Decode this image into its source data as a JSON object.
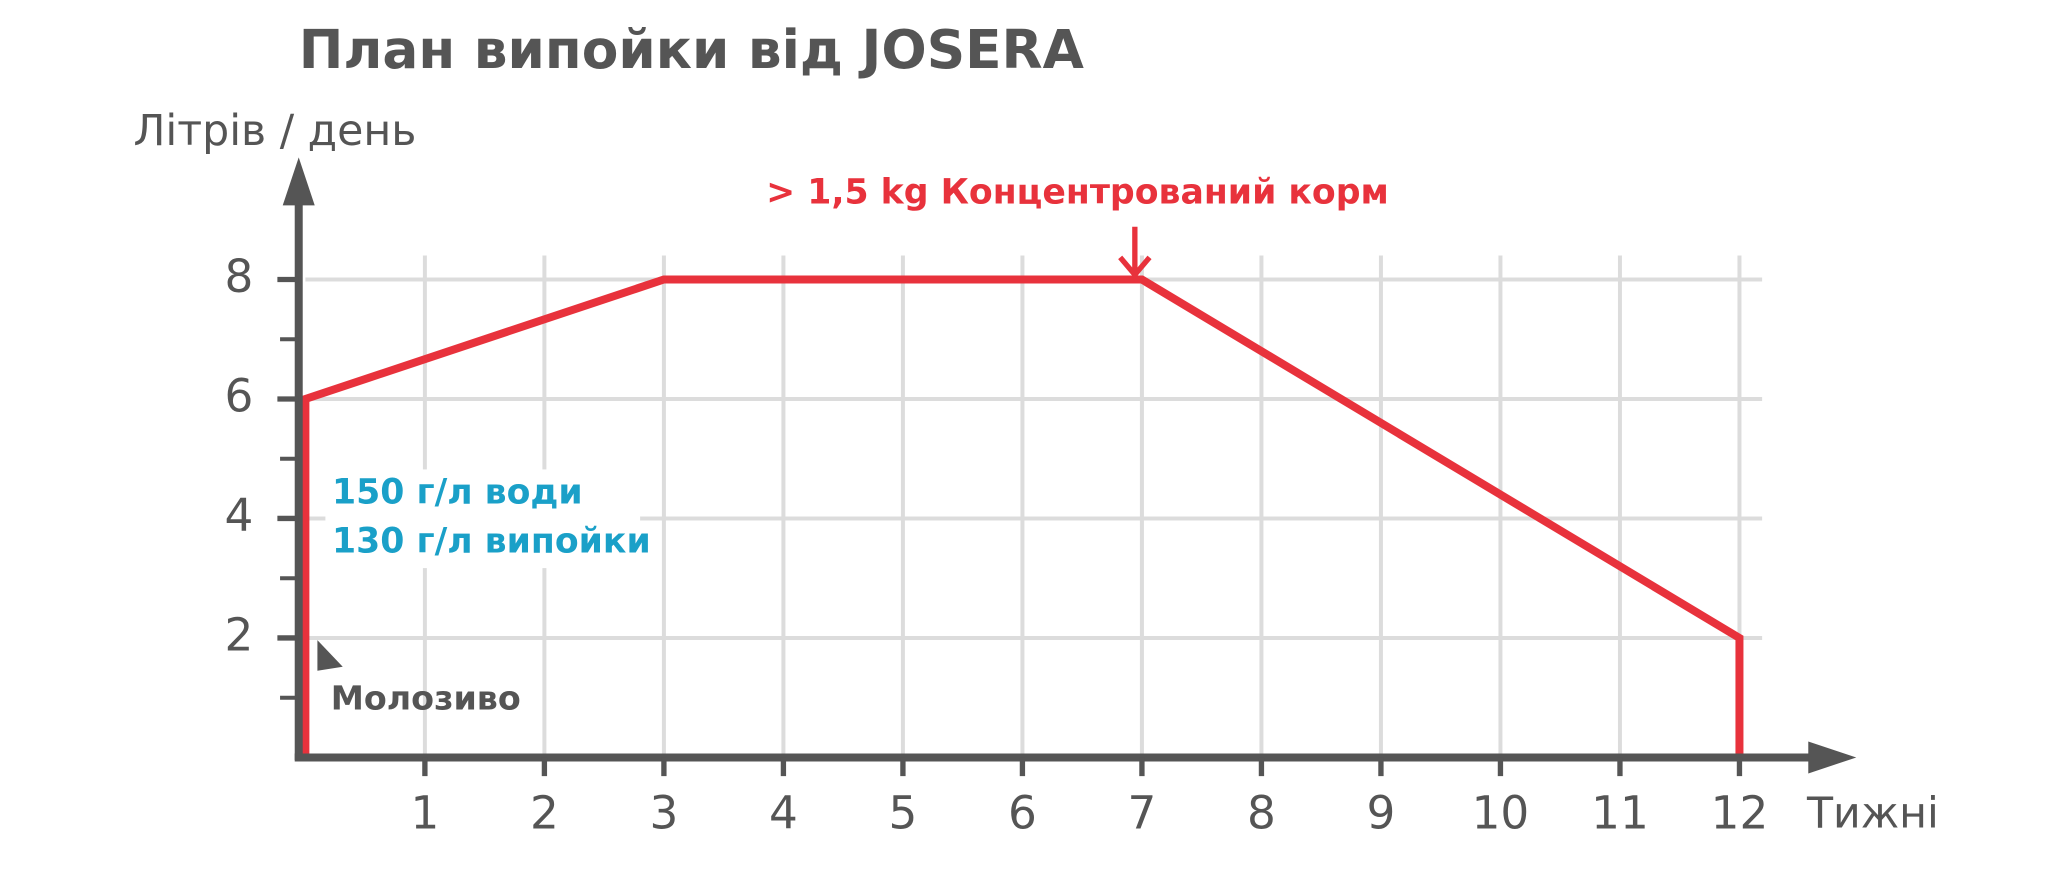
{
  "chart_data": {
    "type": "line",
    "title": "План випойки від JOSERA",
    "y_label": "Літрів / день",
    "x_label": "Тижні",
    "annotations": {
      "feed": "> 1,5 kg Концентрований корм",
      "dose": [
        "150 г/л води",
        "130 г/л випойки"
      ],
      "colostrum": "Молозиво"
    },
    "x": [
      0,
      0,
      3,
      7,
      12,
      12
    ],
    "series": [
      {
        "name": "Літрів / день",
        "color": "#e8323c",
        "values": [
          0,
          6,
          8,
          8,
          2,
          0
        ]
      }
    ],
    "xlim": [
      0,
      13
    ],
    "ylim": [
      0,
      10
    ],
    "xticks": [
      1,
      2,
      3,
      4,
      5,
      6,
      7,
      8,
      9,
      10,
      11,
      12
    ],
    "yticks": [
      2,
      4,
      6,
      8
    ],
    "y_minor_ticks": [
      1,
      3,
      5,
      7
    ],
    "grid": true
  }
}
